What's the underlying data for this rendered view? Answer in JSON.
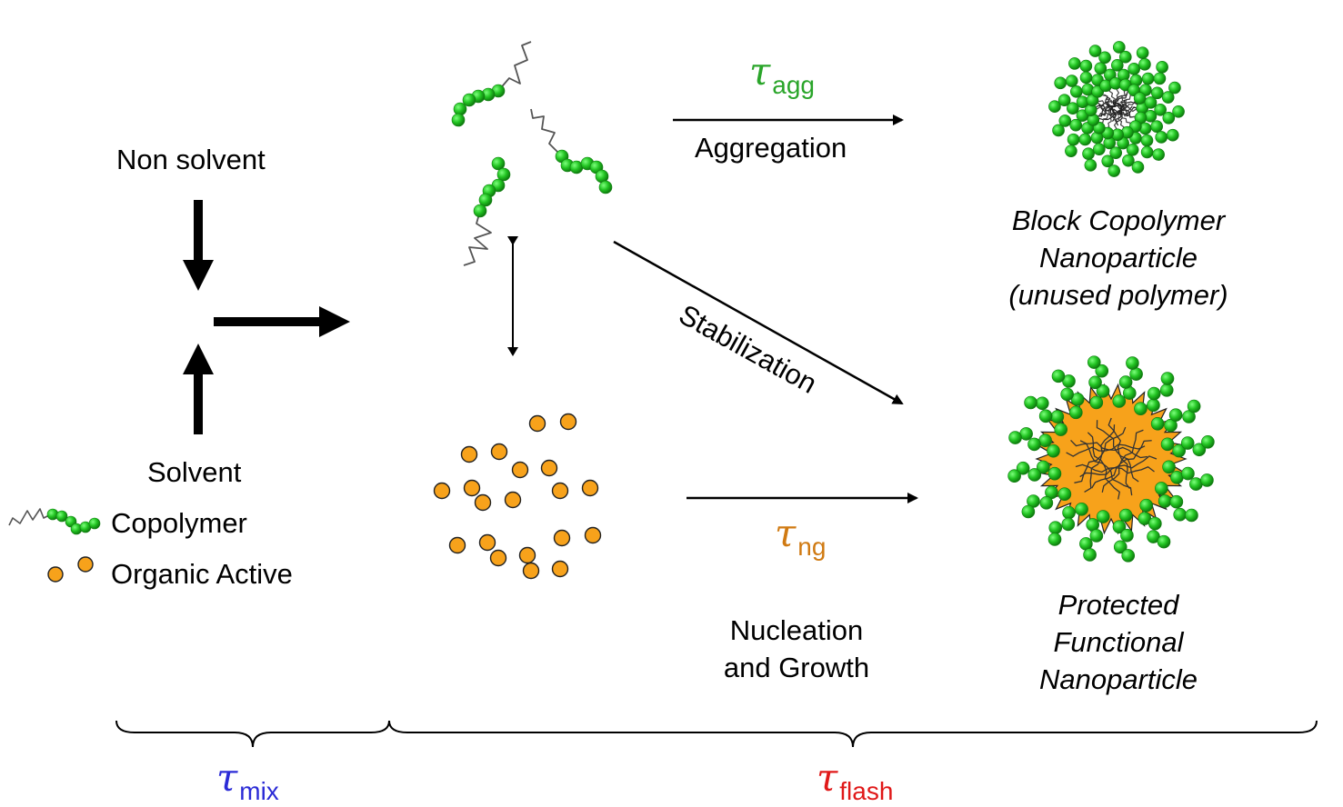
{
  "labels": {
    "non_solvent": "Non solvent",
    "solvent": "Solvent",
    "copolymer": "Copolymer",
    "organic_active": "Organic Active",
    "aggregation": "Aggregation",
    "stabilization": "Stabilization",
    "nucleation_line1": "Nucleation",
    "nucleation_line2": "and Growth",
    "block_np_line1": "Block Copolymer",
    "block_np_line2": "Nanoparticle",
    "block_np_line3": "(unused polymer)",
    "protected_np_line1": "Protected",
    "protected_np_line2": "Functional",
    "protected_np_line3": "Nanoparticle"
  },
  "timescales": {
    "tau_symbol": "τ",
    "agg_sub": "agg",
    "ng_sub": "ng",
    "mix_sub": "mix",
    "flash_sub": "flash"
  },
  "colors": {
    "bead_green": "#22c422",
    "bead_green_dark": "#0f7d0f",
    "active_orange": "#f7a21b",
    "active_orange_dark": "#b86a00",
    "tau_agg": "#2aa52a",
    "tau_ng": "#d07a12",
    "tau_mix": "#2b2bd6",
    "tau_flash": "#e01818"
  }
}
